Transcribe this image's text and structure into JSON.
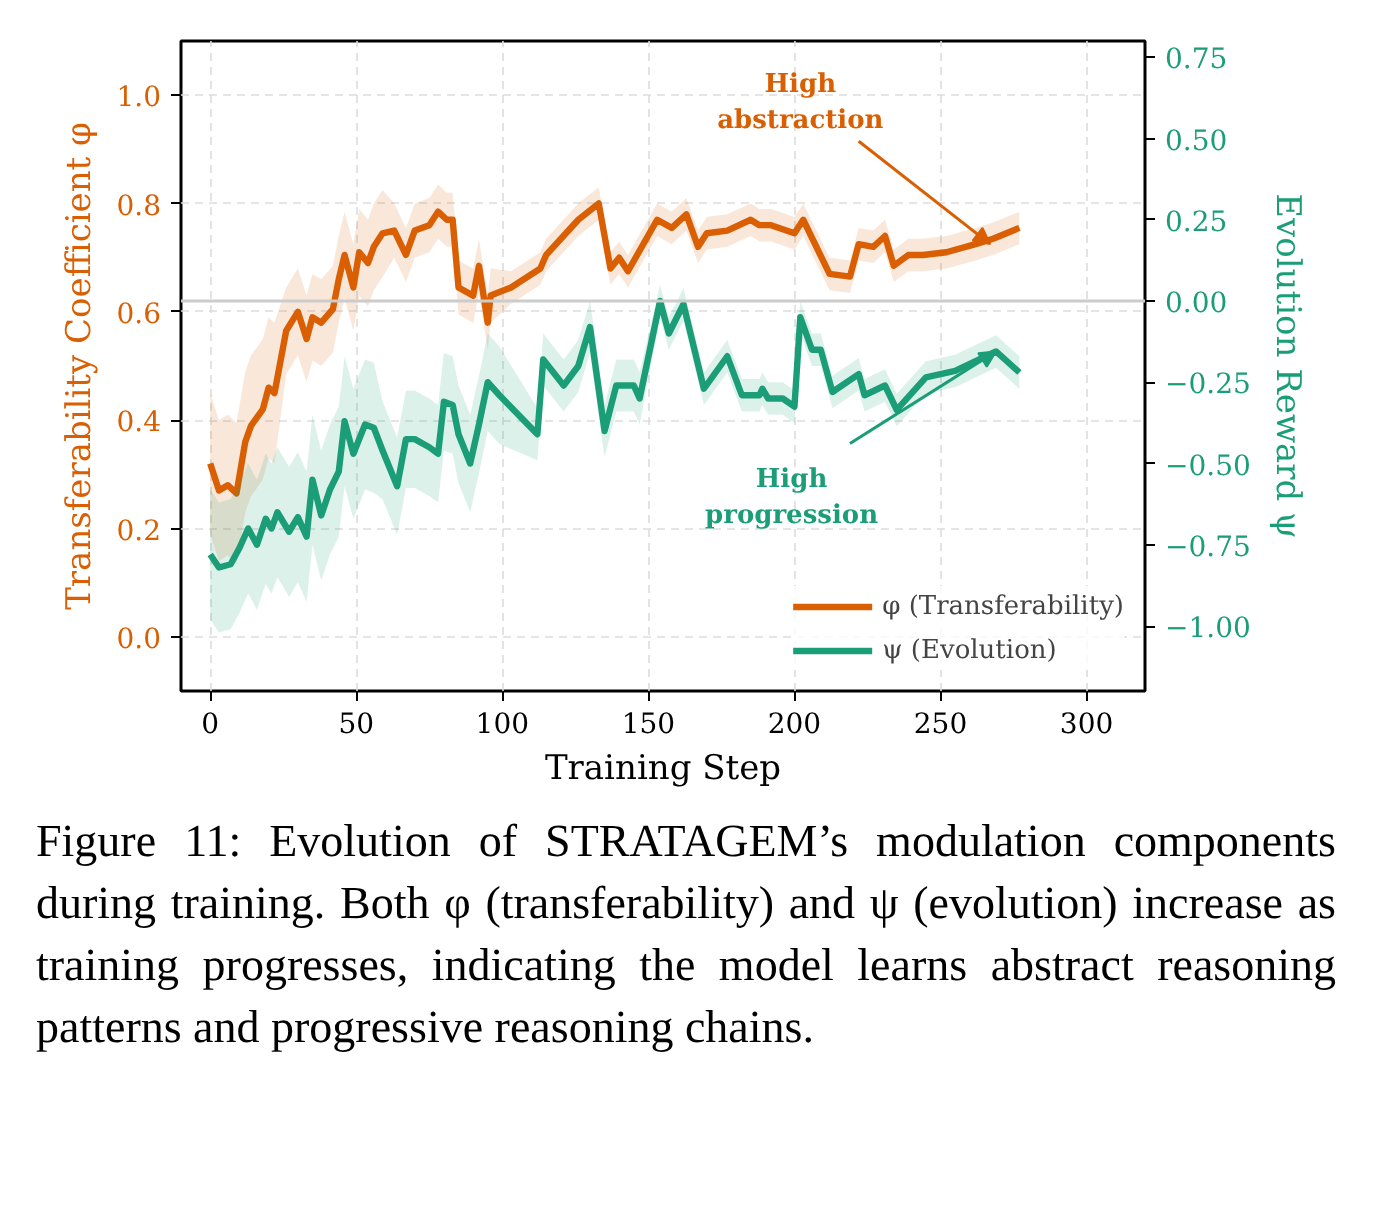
{
  "chart_data": {
    "type": "line",
    "xlabel": "Training Step",
    "ylabel": "Transferability Coefficient φ",
    "y2label": "Evolution Reward ψ",
    "xlim": [
      -10,
      320
    ],
    "ylim": [
      -0.1,
      1.1
    ],
    "y2lim": [
      -1.2,
      0.8
    ],
    "xticks": [
      0,
      50,
      100,
      150,
      200,
      250,
      300
    ],
    "yticks": [
      {
        "value": 0,
        "label": "0.0"
      },
      {
        "value": 0.2,
        "label": "0.2"
      },
      {
        "value": 0.4,
        "label": "0.4"
      },
      {
        "value": 0.6,
        "label": "0.6"
      },
      {
        "value": 0.8,
        "label": "0.8"
      },
      {
        "value": 1,
        "label": "1.0"
      }
    ],
    "y2ticks": [
      {
        "value": -1,
        "label": "−1.00"
      },
      {
        "value": -0.75,
        "label": "−0.75"
      },
      {
        "value": -0.5,
        "label": "−0.50"
      },
      {
        "value": -0.25,
        "label": "−0.25"
      },
      {
        "value": 0,
        "label": "0.00"
      },
      {
        "value": 0.25,
        "label": "0.25"
      },
      {
        "value": 0.5,
        "label": "0.50"
      },
      {
        "value": 0.75,
        "label": "0.75"
      }
    ],
    "grid": true,
    "legend": "bottom right",
    "line_style": "solid",
    "marker": "none",
    "ref_lines": [
      {
        "axis": "y2",
        "value": 0,
        "color": "#cccccc"
      }
    ],
    "series": [
      {
        "name": "φ (Transferability)",
        "color": "#d95f02",
        "x": [
          0,
          3,
          6,
          9,
          12,
          14,
          18,
          20,
          22,
          26,
          30,
          33,
          35,
          38,
          42,
          44,
          46,
          49,
          51,
          54,
          56,
          59,
          63,
          67,
          70,
          75,
          78,
          81,
          83,
          85,
          90,
          92,
          95,
          96,
          103,
          113,
          115,
          126,
          133,
          137,
          140,
          143,
          153,
          158,
          163,
          167,
          170,
          177,
          185,
          188,
          192,
          200,
          203,
          212,
          219,
          222,
          227,
          231,
          234,
          239,
          244,
          252,
          262,
          268,
          277
        ],
        "values": [
          0.32,
          0.27,
          0.28,
          0.265,
          0.36,
          0.39,
          0.42,
          0.46,
          0.45,
          0.565,
          0.6,
          0.55,
          0.59,
          0.58,
          0.605,
          0.66,
          0.705,
          0.645,
          0.71,
          0.69,
          0.72,
          0.745,
          0.75,
          0.705,
          0.75,
          0.76,
          0.785,
          0.77,
          0.77,
          0.645,
          0.63,
          0.685,
          0.58,
          0.63,
          0.645,
          0.68,
          0.705,
          0.77,
          0.8,
          0.68,
          0.7,
          0.675,
          0.77,
          0.755,
          0.78,
          0.72,
          0.745,
          0.75,
          0.77,
          0.76,
          0.76,
          0.745,
          0.77,
          0.67,
          0.665,
          0.725,
          0.72,
          0.74,
          0.685,
          0.705,
          0.705,
          0.71,
          0.725,
          0.735,
          0.755
        ],
        "lower": [
          0.19,
          0.14,
          0.15,
          0.135,
          0.23,
          0.26,
          0.29,
          0.33,
          0.32,
          0.485,
          0.52,
          0.47,
          0.51,
          0.5,
          0.525,
          0.58,
          0.625,
          0.565,
          0.63,
          0.61,
          0.64,
          0.665,
          0.7,
          0.655,
          0.7,
          0.71,
          0.735,
          0.72,
          0.72,
          0.595,
          0.58,
          0.635,
          0.53,
          0.58,
          0.615,
          0.65,
          0.675,
          0.74,
          0.77,
          0.65,
          0.67,
          0.645,
          0.74,
          0.725,
          0.75,
          0.69,
          0.715,
          0.72,
          0.74,
          0.73,
          0.73,
          0.715,
          0.74,
          0.64,
          0.635,
          0.695,
          0.69,
          0.71,
          0.655,
          0.675,
          0.675,
          0.68,
          0.695,
          0.705,
          0.725
        ],
        "upper": [
          0.45,
          0.4,
          0.41,
          0.395,
          0.49,
          0.52,
          0.55,
          0.59,
          0.58,
          0.645,
          0.68,
          0.63,
          0.67,
          0.66,
          0.685,
          0.74,
          0.785,
          0.725,
          0.79,
          0.77,
          0.8,
          0.825,
          0.8,
          0.755,
          0.8,
          0.81,
          0.835,
          0.82,
          0.82,
          0.695,
          0.68,
          0.735,
          0.63,
          0.68,
          0.675,
          0.71,
          0.735,
          0.8,
          0.83,
          0.71,
          0.73,
          0.705,
          0.8,
          0.785,
          0.81,
          0.75,
          0.775,
          0.78,
          0.8,
          0.79,
          0.79,
          0.775,
          0.8,
          0.7,
          0.695,
          0.755,
          0.75,
          0.77,
          0.715,
          0.735,
          0.735,
          0.74,
          0.755,
          0.765,
          0.785
        ]
      },
      {
        "name": "ψ (Evolution)",
        "color": "#1b9e77",
        "axis": "y2",
        "x": [
          0,
          3,
          7,
          10,
          13,
          16,
          19,
          21,
          23,
          27,
          30,
          33,
          35,
          38,
          41,
          44,
          46,
          49,
          53,
          56,
          59,
          64,
          67,
          70,
          75,
          78,
          80,
          83,
          85,
          89,
          92,
          95,
          99,
          112,
          114,
          121,
          126,
          130,
          135,
          139,
          145,
          147,
          154,
          157,
          162,
          169,
          177,
          182,
          188,
          189,
          191,
          196,
          200,
          202,
          206,
          209,
          213,
          222,
          224,
          231,
          235,
          245,
          255,
          269,
          277
        ],
        "values": [
          -0.78,
          -0.82,
          -0.81,
          -0.76,
          -0.7,
          -0.75,
          -0.67,
          -0.7,
          -0.65,
          -0.71,
          -0.665,
          -0.725,
          -0.55,
          -0.66,
          -0.58,
          -0.525,
          -0.37,
          -0.47,
          -0.38,
          -0.39,
          -0.46,
          -0.57,
          -0.425,
          -0.425,
          -0.45,
          -0.47,
          -0.31,
          -0.32,
          -0.41,
          -0.5,
          -0.38,
          -0.25,
          -0.29,
          -0.41,
          -0.18,
          -0.26,
          -0.2,
          -0.08,
          -0.4,
          -0.26,
          -0.26,
          -0.3,
          0.0,
          -0.1,
          -0.01,
          -0.27,
          -0.17,
          -0.29,
          -0.29,
          -0.27,
          -0.3,
          -0.3,
          -0.325,
          -0.05,
          -0.15,
          -0.15,
          -0.28,
          -0.225,
          -0.29,
          -0.26,
          -0.335,
          -0.235,
          -0.215,
          -0.155,
          -0.22
        ],
        "lower": [
          -0.98,
          -1.02,
          -1.01,
          -0.96,
          -0.9,
          -0.95,
          -0.87,
          -0.9,
          -0.85,
          -0.91,
          -0.865,
          -0.925,
          -0.75,
          -0.86,
          -0.78,
          -0.725,
          -0.57,
          -0.67,
          -0.58,
          -0.59,
          -0.61,
          -0.72,
          -0.575,
          -0.575,
          -0.6,
          -0.62,
          -0.46,
          -0.47,
          -0.56,
          -0.65,
          -0.53,
          -0.4,
          -0.44,
          -0.49,
          -0.26,
          -0.34,
          -0.28,
          -0.16,
          -0.48,
          -0.34,
          -0.34,
          -0.38,
          -0.05,
          -0.15,
          -0.06,
          -0.32,
          -0.22,
          -0.34,
          -0.34,
          -0.32,
          -0.35,
          -0.35,
          -0.375,
          -0.1,
          -0.2,
          -0.2,
          -0.33,
          -0.275,
          -0.34,
          -0.31,
          -0.385,
          -0.285,
          -0.265,
          -0.205,
          -0.27
        ],
        "upper": [
          -0.58,
          -0.62,
          -0.61,
          -0.56,
          -0.5,
          -0.55,
          -0.47,
          -0.5,
          -0.45,
          -0.51,
          -0.465,
          -0.525,
          -0.35,
          -0.46,
          -0.38,
          -0.325,
          -0.17,
          -0.27,
          -0.18,
          -0.19,
          -0.31,
          -0.42,
          -0.275,
          -0.275,
          -0.3,
          -0.32,
          -0.16,
          -0.17,
          -0.26,
          -0.35,
          -0.23,
          -0.1,
          -0.14,
          -0.33,
          -0.1,
          -0.18,
          -0.12,
          0.0,
          -0.32,
          -0.18,
          -0.18,
          -0.22,
          0.05,
          -0.05,
          0.04,
          -0.22,
          -0.12,
          -0.24,
          -0.24,
          -0.22,
          -0.25,
          -0.25,
          -0.275,
          0.0,
          -0.1,
          -0.1,
          -0.23,
          -0.175,
          -0.24,
          -0.21,
          -0.285,
          -0.185,
          -0.165,
          -0.105,
          -0.17
        ]
      }
    ],
    "annotations": [
      {
        "text": "High\nabstraction",
        "x": 267,
        "y": 0.725
      },
      {
        "text": "High\nprogression",
        "x": 269,
        "y": 0.527
      },
      "Figure 11: Evolution of STRATAGEM’s modulation components during training. Both φ (transferability) and ψ (evolution) increase as training progresses, indicating the model learns abstract reasoning patterns and progressive reasoning chains."
    ]
  }
}
